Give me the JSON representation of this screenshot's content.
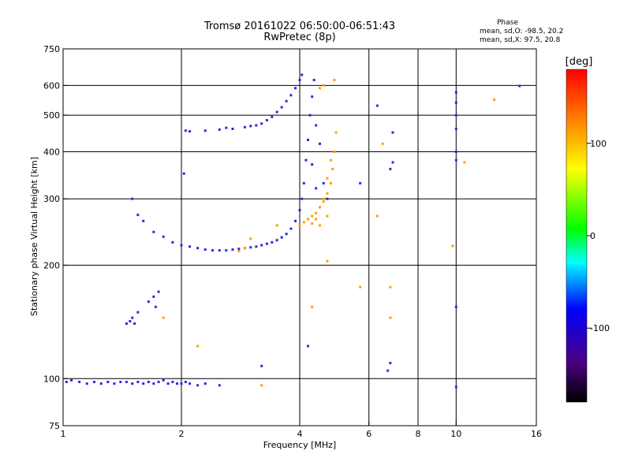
{
  "chart_data": {
    "type": "scatter",
    "title": "Tromsø 20161022 06:50:00-06:51:43",
    "subtitle": "RwPretec (8p)",
    "xlabel": "Frequency [MHz]",
    "ylabel": "Stationary phase Virtual Height [km]",
    "x_scale": "log",
    "y_scale": "log",
    "xlim": [
      1,
      16
    ],
    "ylim": [
      75,
      750
    ],
    "x_ticks": [
      1,
      2,
      4,
      6,
      8,
      10,
      16
    ],
    "x_tick_labels": [
      "1",
      "2",
      "4",
      "6",
      "8",
      "10",
      "16"
    ],
    "x_gridlines": [
      2,
      4,
      6,
      8,
      10
    ],
    "y_ticks": [
      75,
      100,
      200,
      300,
      400,
      500,
      600,
      750
    ],
    "y_tick_labels": [
      "75",
      "100",
      "200",
      "300",
      "400",
      "500",
      "600",
      "750"
    ],
    "y_gridlines": [
      100,
      200,
      300,
      400,
      500,
      600
    ],
    "grid": true,
    "stats": {
      "heading": "Phase",
      "line_o": "mean, sd,O: -98.5, 20.2",
      "line_x": "mean, sd,X:  97.5, 20.8"
    },
    "colorbar": {
      "label": "[deg]",
      "range": [
        -180,
        180
      ],
      "ticks": [
        100,
        0,
        -100
      ],
      "tick_labels": [
        "100",
        "0",
        "-100"
      ],
      "colors": [
        "#000000",
        "#4b0082",
        "#0000ff",
        "#00ffff",
        "#00ff00",
        "#ffff00",
        "#ff8000",
        "#ff0000"
      ]
    },
    "series": [
      {
        "mode": "O",
        "color": "#2a2adf",
        "phase_deg": -98.5,
        "points": [
          [
            1.02,
            98
          ],
          [
            1.05,
            99
          ],
          [
            1.1,
            98
          ],
          [
            1.15,
            97
          ],
          [
            1.2,
            98
          ],
          [
            1.25,
            97
          ],
          [
            1.3,
            98
          ],
          [
            1.35,
            97
          ],
          [
            1.4,
            98
          ],
          [
            1.45,
            98
          ],
          [
            1.5,
            97
          ],
          [
            1.55,
            98
          ],
          [
            1.6,
            97
          ],
          [
            1.65,
            98
          ],
          [
            1.7,
            97
          ],
          [
            1.75,
            98
          ],
          [
            1.8,
            99
          ],
          [
            1.85,
            97
          ],
          [
            1.9,
            98
          ],
          [
            1.95,
            97
          ],
          [
            2.0,
            97
          ],
          [
            2.05,
            98
          ],
          [
            2.1,
            97
          ],
          [
            2.2,
            96
          ],
          [
            2.3,
            97
          ],
          [
            2.5,
            96
          ],
          [
            1.5,
            145
          ],
          [
            1.55,
            150
          ],
          [
            1.52,
            140
          ],
          [
            1.65,
            160
          ],
          [
            1.7,
            165
          ],
          [
            1.75,
            170
          ],
          [
            1.72,
            155
          ],
          [
            1.5,
            300
          ],
          [
            1.55,
            272
          ],
          [
            1.6,
            262
          ],
          [
            1.7,
            245
          ],
          [
            1.8,
            238
          ],
          [
            1.9,
            230
          ],
          [
            2.0,
            226
          ],
          [
            2.1,
            224
          ],
          [
            2.2,
            222
          ],
          [
            2.3,
            220
          ],
          [
            2.4,
            219
          ],
          [
            2.5,
            219
          ],
          [
            2.6,
            219
          ],
          [
            2.7,
            220
          ],
          [
            2.8,
            221
          ],
          [
            2.9,
            222
          ],
          [
            3.0,
            223
          ],
          [
            3.1,
            224
          ],
          [
            3.2,
            226
          ],
          [
            3.3,
            228
          ],
          [
            3.4,
            230
          ],
          [
            3.5,
            233
          ],
          [
            3.6,
            237
          ],
          [
            3.7,
            242
          ],
          [
            3.8,
            250
          ],
          [
            3.9,
            262
          ],
          [
            4.0,
            280
          ],
          [
            4.05,
            300
          ],
          [
            4.1,
            330
          ],
          [
            4.15,
            380
          ],
          [
            4.2,
            430
          ],
          [
            4.25,
            500
          ],
          [
            4.3,
            560
          ],
          [
            4.35,
            620
          ],
          [
            4.05,
            640
          ],
          [
            4.0,
            620
          ],
          [
            3.9,
            590
          ],
          [
            3.8,
            565
          ],
          [
            3.7,
            545
          ],
          [
            3.6,
            525
          ],
          [
            3.5,
            510
          ],
          [
            3.4,
            495
          ],
          [
            3.3,
            485
          ],
          [
            3.2,
            475
          ],
          [
            3.1,
            470
          ],
          [
            3.0,
            468
          ],
          [
            2.9,
            465
          ],
          [
            2.7,
            460
          ],
          [
            2.5,
            458
          ],
          [
            2.3,
            455
          ],
          [
            2.1,
            453
          ],
          [
            2.05,
            455
          ],
          [
            2.6,
            463
          ],
          [
            4.4,
            470
          ],
          [
            4.5,
            420
          ],
          [
            4.6,
            330
          ],
          [
            4.7,
            300
          ],
          [
            4.3,
            370
          ],
          [
            4.4,
            320
          ],
          [
            5.7,
            330
          ],
          [
            6.3,
            530
          ],
          [
            6.9,
            450
          ],
          [
            6.9,
            375
          ],
          [
            6.8,
            360
          ],
          [
            6.8,
            110
          ],
          [
            6.7,
            105
          ],
          [
            10.0,
            575
          ],
          [
            10.0,
            540
          ],
          [
            10.0,
            500
          ],
          [
            10.0,
            460
          ],
          [
            10.0,
            400
          ],
          [
            10.0,
            380
          ],
          [
            10.0,
            155
          ],
          [
            10.0,
            95
          ],
          [
            14.5,
            598
          ],
          [
            3.2,
            108
          ],
          [
            4.2,
            122
          ],
          [
            2.03,
            350
          ],
          [
            1.45,
            140
          ],
          [
            1.48,
            142
          ]
        ]
      },
      {
        "mode": "X",
        "color": "#ffa000",
        "phase_deg": 97.5,
        "points": [
          [
            4.0,
            255
          ],
          [
            4.1,
            260
          ],
          [
            4.2,
            265
          ],
          [
            4.3,
            270
          ],
          [
            4.4,
            275
          ],
          [
            4.5,
            285
          ],
          [
            4.6,
            295
          ],
          [
            4.7,
            310
          ],
          [
            4.8,
            330
          ],
          [
            4.85,
            360
          ],
          [
            4.9,
            400
          ],
          [
            4.95,
            450
          ],
          [
            4.7,
            270
          ],
          [
            4.5,
            255
          ],
          [
            4.4,
            265
          ],
          [
            4.3,
            258
          ],
          [
            4.6,
            600
          ],
          [
            4.9,
            620
          ],
          [
            4.5,
            590
          ],
          [
            4.6,
            300
          ],
          [
            4.7,
            340
          ],
          [
            4.8,
            380
          ],
          [
            6.3,
            270
          ],
          [
            9.8,
            225
          ],
          [
            12.5,
            550
          ],
          [
            4.7,
            205
          ],
          [
            4.3,
            155
          ],
          [
            6.8,
            145
          ],
          [
            5.7,
            175
          ],
          [
            6.8,
            175
          ],
          [
            1.8,
            145
          ],
          [
            3.2,
            96
          ],
          [
            10.5,
            375
          ],
          [
            2.2,
            122
          ],
          [
            3.0,
            235
          ],
          [
            2.9,
            222
          ],
          [
            2.8,
            218
          ],
          [
            3.5,
            255
          ],
          [
            6.5,
            420
          ]
        ]
      }
    ]
  }
}
